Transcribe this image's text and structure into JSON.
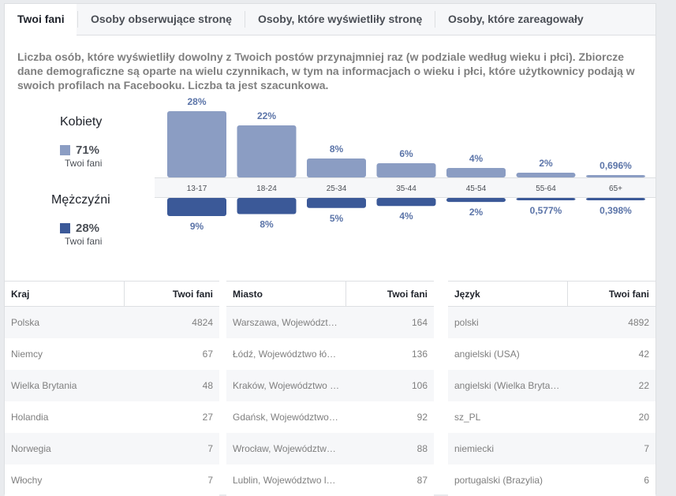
{
  "tabs": [
    {
      "label": "Twoi fani",
      "active": true
    },
    {
      "label": "Osoby obserwujące stronę",
      "active": false
    },
    {
      "label": "Osoby, które wyświetliły stronę",
      "active": false
    },
    {
      "label": "Osoby, które zareagowały",
      "active": false
    }
  ],
  "description": "Liczba osób, które wyświetliły dowolny z Twoich postów przynajmniej raz (w podziale według wieku i płci). Zbiorcze dane demograficzne są oparte na wielu czynnikach, w tym na informacjach o wieku i płci, które użytkownicy podają w swoich profilach na Facebooku. Liczba ta jest szacunkowa.",
  "women": {
    "title": "Kobiety",
    "percent": "71%",
    "sub": "Twoi fani",
    "color": "#8b9dc3"
  },
  "men": {
    "title": "Mężczyźni",
    "percent": "28%",
    "sub": "Twoi fani",
    "color": "#3b5998"
  },
  "chart_data": {
    "type": "bar",
    "categories": [
      "13-17",
      "18-24",
      "25-34",
      "35-44",
      "45-54",
      "55-64",
      "65+"
    ],
    "series": [
      {
        "name": "Kobiety",
        "values": [
          28,
          22,
          8,
          6,
          4,
          2,
          0.696
        ],
        "labels": [
          "28%",
          "22%",
          "8%",
          "6%",
          "4%",
          "2%",
          "0,696%"
        ]
      },
      {
        "name": "Mężczyźni",
        "values": [
          9,
          8,
          5,
          4,
          2,
          0.577,
          0.398
        ],
        "labels": [
          "9%",
          "8%",
          "5%",
          "4%",
          "2%",
          "0,577%",
          "0,398%"
        ]
      }
    ]
  },
  "countries": {
    "header": [
      "Kraj",
      "Twoi fani"
    ],
    "rows": [
      [
        "Polska",
        "4824"
      ],
      [
        "Niemcy",
        "67"
      ],
      [
        "Wielka Brytania",
        "48"
      ],
      [
        "Holandia",
        "27"
      ],
      [
        "Norwegia",
        "7"
      ],
      [
        "Włochy",
        "7"
      ]
    ]
  },
  "cities": {
    "header": [
      "Miasto",
      "Twoi fani"
    ],
    "rows": [
      [
        "Warszawa, Województw…",
        "164"
      ],
      [
        "Łódź, Województwo łó…",
        "136"
      ],
      [
        "Kraków, Województwo …",
        "106"
      ],
      [
        "Gdańsk, Województwo…",
        "92"
      ],
      [
        "Wrocław, Województw…",
        "88"
      ],
      [
        "Lublin, Województwo l…",
        "87"
      ]
    ]
  },
  "languages": {
    "header": [
      "Język",
      "Twoi fani"
    ],
    "rows": [
      [
        "polski",
        "4892"
      ],
      [
        "angielski (USA)",
        "42"
      ],
      [
        "angielski (Wielka Bryta…",
        "22"
      ],
      [
        "sz_PL",
        "20"
      ],
      [
        "niemiecki",
        "7"
      ],
      [
        "portugalski (Brazylia)",
        "6"
      ]
    ]
  }
}
